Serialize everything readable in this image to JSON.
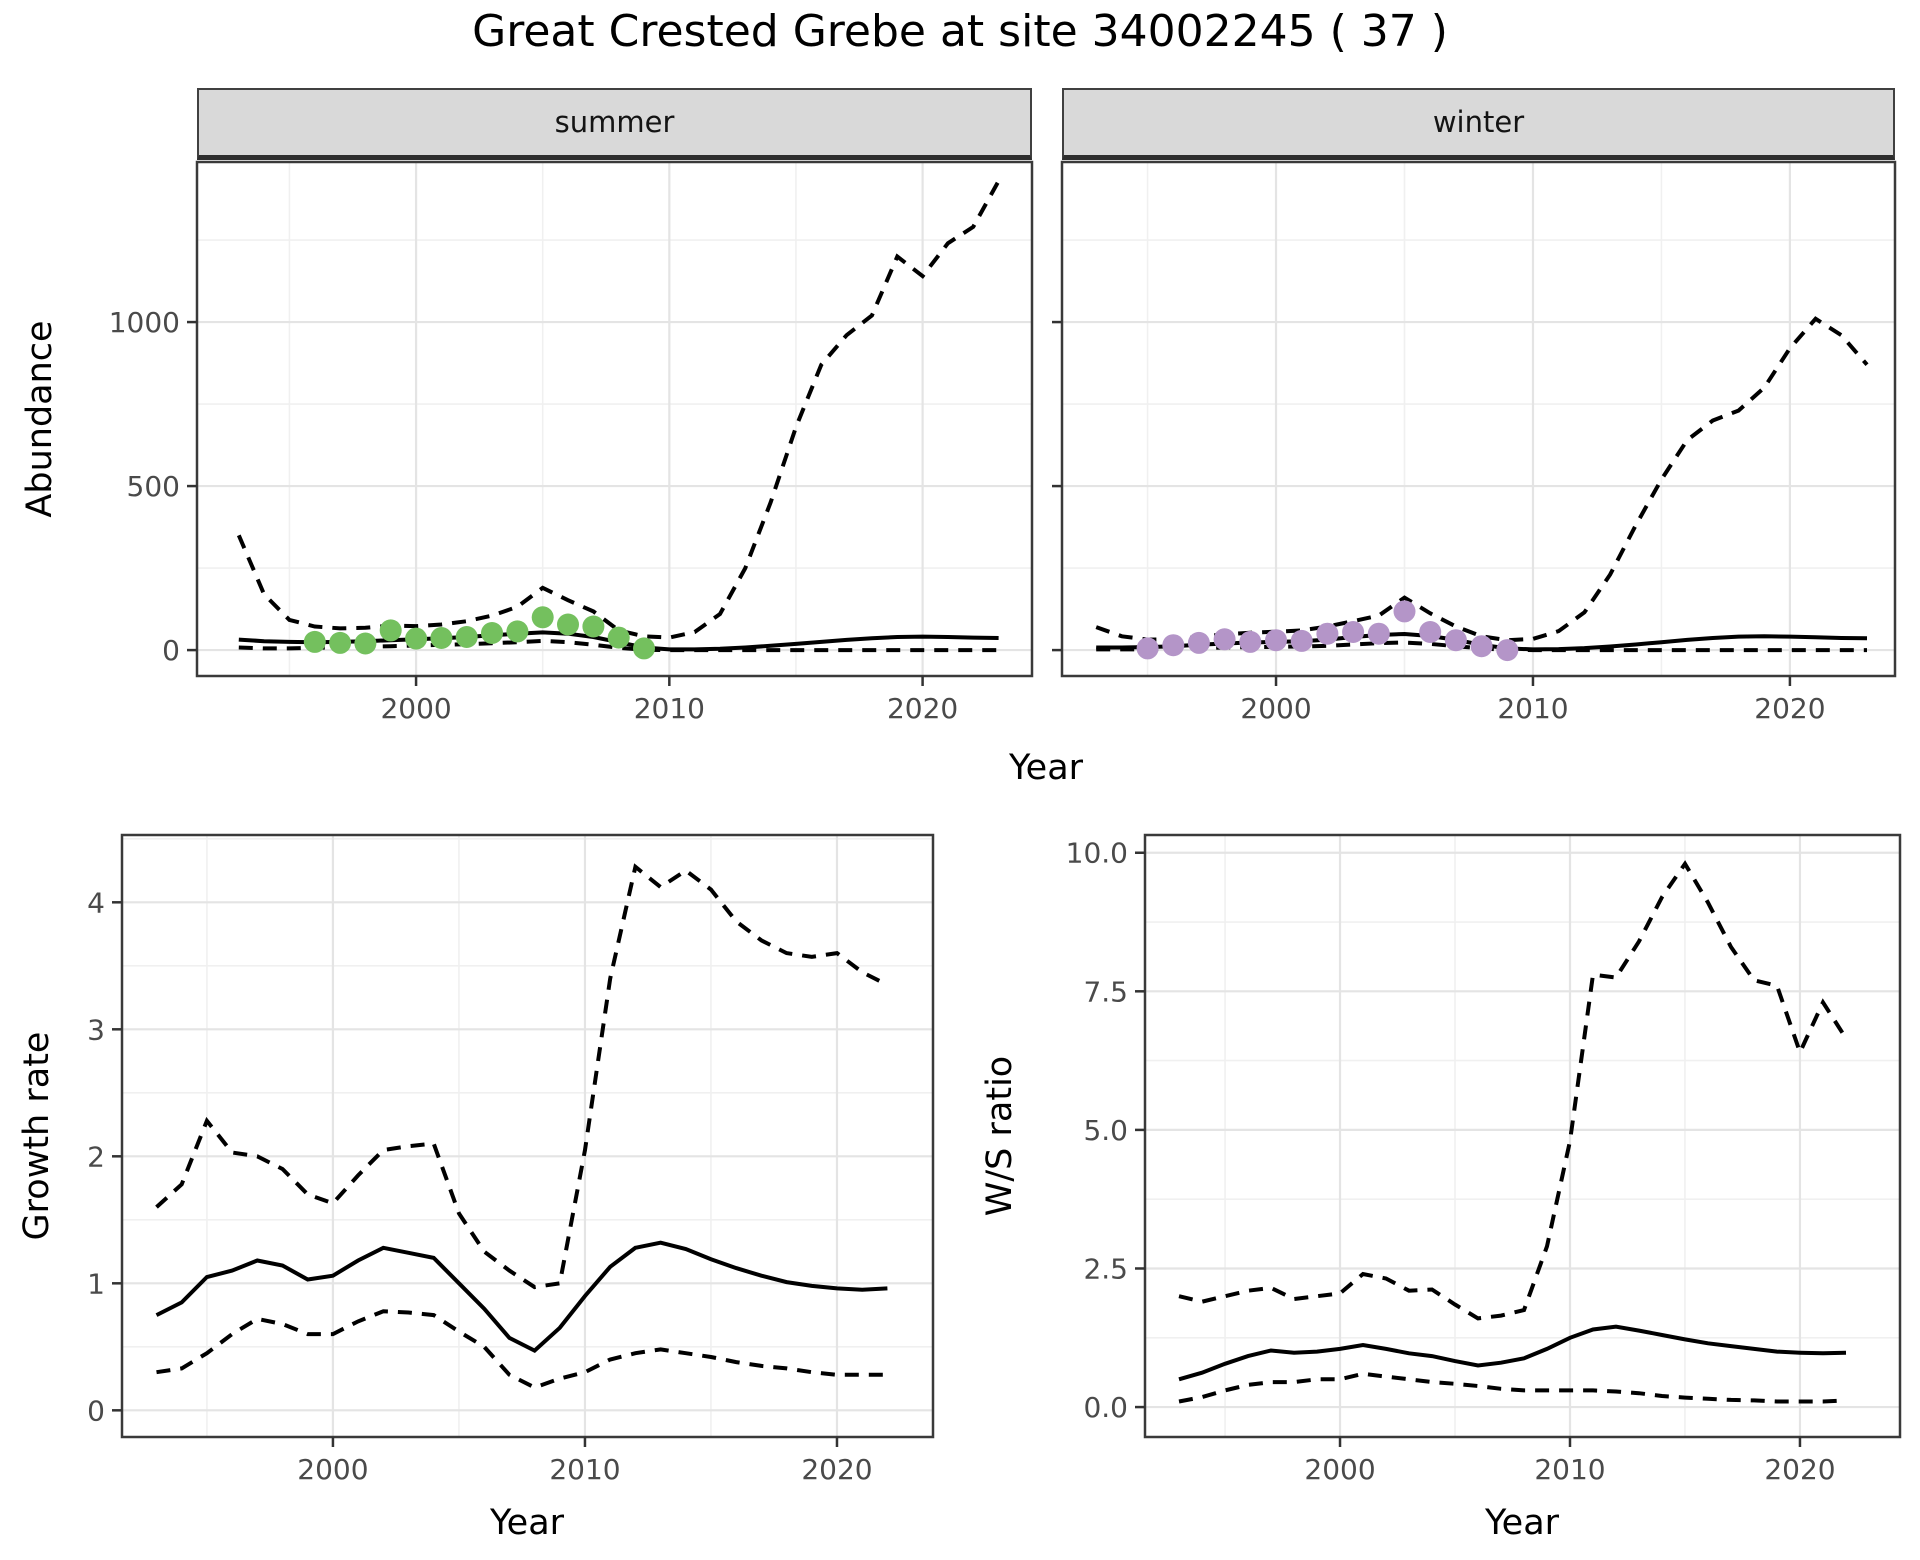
{
  "title": "Great Crested Grebe at site 34002245 ( 37 )",
  "facets": {
    "summer": "summer",
    "winter": "winter"
  },
  "axis_titles": {
    "abundance": "Abundance",
    "year_top": "Year",
    "growth": "Growth rate",
    "year_growth": "Year",
    "ws": "W/S ratio",
    "year_ws": "Year"
  },
  "colors": {
    "summer_points": "#74c05e",
    "winter_points": "#b495c8",
    "line": "#000000",
    "strip_bg": "#d9d9d9",
    "axis_text": "#4a4a4a"
  },
  "chart_data": [
    {
      "id": "abundance_summer",
      "type": "line",
      "facet": "summer",
      "ylabel": "Abundance",
      "xlabel": "Year",
      "xlim": [
        1991.35,
        2024.32
      ],
      "ylim": [
        -79,
        1488
      ],
      "xticks": [
        2000,
        2010,
        2020
      ],
      "xtick_labels": [
        "2000",
        "2010",
        "2020"
      ],
      "xminor": [
        1995,
        2005,
        2015
      ],
      "yticks": [
        0,
        500,
        1000
      ],
      "ytick_labels": [
        "0",
        "500",
        "1000"
      ],
      "yminor": [
        250,
        750,
        1250
      ],
      "show_ytick_labels": true,
      "x": [
        1993,
        1994,
        1995,
        1996,
        1997,
        1998,
        1999,
        2000,
        2001,
        2002,
        2003,
        2004,
        2005,
        2006,
        2007,
        2008,
        2009,
        2010,
        2011,
        2012,
        2013,
        2014,
        2015,
        2016,
        2017,
        2018,
        2019,
        2020,
        2021,
        2022,
        2023
      ],
      "series": [
        {
          "name": "upper-ci",
          "style": "dashed",
          "values": [
            350,
            170,
            92,
            72,
            66,
            68,
            75,
            73,
            78,
            88,
            105,
            132,
            190,
            152,
            118,
            60,
            42,
            38,
            55,
            110,
            250,
            450,
            680,
            870,
            960,
            1020,
            1200,
            1140,
            1240,
            1290,
            1430
          ]
        },
        {
          "name": "fit",
          "style": "solid",
          "values": [
            32,
            27,
            25,
            24,
            25,
            27,
            30,
            33,
            36,
            40,
            45,
            50,
            54,
            50,
            40,
            24,
            8,
            2,
            2,
            4,
            8,
            13,
            19,
            25,
            31,
            36,
            40,
            41,
            40,
            38,
            37
          ]
        },
        {
          "name": "lower-ci",
          "style": "dashed",
          "values": [
            8,
            5,
            5,
            7,
            8,
            10,
            12,
            14,
            16,
            18,
            21,
            24,
            28,
            24,
            16,
            7,
            1,
            0,
            0,
            0,
            0,
            0,
            0,
            0,
            0,
            0,
            0,
            0,
            0,
            0,
            0
          ]
        }
      ],
      "points": {
        "name": "observed-summer",
        "color_key": "summer_points",
        "x": [
          1996,
          1997,
          1998,
          1999,
          2000,
          2001,
          2002,
          2003,
          2004,
          2005,
          2006,
          2007,
          2008,
          2009
        ],
        "y": [
          25,
          22,
          20,
          60,
          35,
          37,
          40,
          52,
          57,
          100,
          78,
          72,
          38,
          5
        ]
      }
    },
    {
      "id": "abundance_winter",
      "type": "line",
      "facet": "winter",
      "ylabel": "Abundance",
      "xlabel": "Year",
      "xlim": [
        1991.67,
        2024.09
      ],
      "ylim": [
        -79,
        1488
      ],
      "xticks": [
        2000,
        2010,
        2020
      ],
      "xtick_labels": [
        "2000",
        "2010",
        "2020"
      ],
      "xminor": [
        1995,
        2005,
        2015
      ],
      "yticks": [
        0,
        500,
        1000
      ],
      "ytick_labels": [
        "0",
        "500",
        "1000"
      ],
      "yminor": [
        250,
        750,
        1250
      ],
      "show_ytick_labels": false,
      "x": [
        1993,
        1994,
        1995,
        1996,
        1997,
        1998,
        1999,
        2000,
        2001,
        2002,
        2003,
        2004,
        2005,
        2006,
        2007,
        2008,
        2009,
        2010,
        2011,
        2012,
        2013,
        2014,
        2015,
        2016,
        2017,
        2018,
        2019,
        2020,
        2021,
        2022,
        2023
      ],
      "series": [
        {
          "name": "upper-ci",
          "style": "dashed",
          "values": [
            70,
            42,
            32,
            33,
            40,
            48,
            53,
            56,
            60,
            72,
            88,
            105,
            160,
            112,
            72,
            42,
            30,
            34,
            58,
            115,
            230,
            380,
            520,
            640,
            700,
            730,
            800,
            920,
            1010,
            960,
            870
          ]
        },
        {
          "name": "fit",
          "style": "solid",
          "values": [
            8,
            8,
            9,
            12,
            16,
            20,
            23,
            25,
            27,
            32,
            40,
            46,
            49,
            43,
            31,
            16,
            5,
            2,
            3,
            6,
            11,
            17,
            24,
            31,
            37,
            41,
            42,
            41,
            39,
            37,
            36
          ]
        },
        {
          "name": "lower-ci",
          "style": "dashed",
          "values": [
            2,
            2,
            2,
            3,
            5,
            8,
            9,
            10,
            11,
            13,
            17,
            21,
            23,
            19,
            12,
            5,
            1,
            0,
            0,
            0,
            0,
            0,
            0,
            0,
            0,
            0,
            0,
            0,
            0,
            0,
            0
          ]
        }
      ],
      "points": {
        "name": "observed-winter",
        "color_key": "winter_points",
        "x": [
          1995,
          1996,
          1997,
          1998,
          1999,
          2000,
          2001,
          2002,
          2003,
          2004,
          2005,
          2006,
          2007,
          2008,
          2009
        ],
        "y": [
          5,
          15,
          22,
          33,
          25,
          30,
          28,
          50,
          55,
          50,
          118,
          55,
          30,
          12,
          0
        ]
      }
    },
    {
      "id": "growth_rate",
      "type": "line",
      "facet": null,
      "ylabel": "Growth rate",
      "xlabel": "Year",
      "xlim": [
        1991.63,
        2023.81
      ],
      "ylim": [
        -0.21,
        4.53
      ],
      "xticks": [
        2000,
        2010,
        2020
      ],
      "xtick_labels": [
        "2000",
        "2010",
        "2020"
      ],
      "xminor": [
        1995,
        2005,
        2015
      ],
      "yticks": [
        0,
        1,
        2,
        3,
        4
      ],
      "ytick_labels": [
        "0",
        "1",
        "2",
        "3",
        "4"
      ],
      "yminor": [
        0.5,
        1.5,
        2.5,
        3.5,
        4.5
      ],
      "show_ytick_labels": true,
      "x": [
        1993,
        1994,
        1995,
        1996,
        1997,
        1998,
        1999,
        2000,
        2001,
        2002,
        2003,
        2004,
        2005,
        2006,
        2007,
        2008,
        2009,
        2010,
        2011,
        2012,
        2013,
        2014,
        2015,
        2016,
        2017,
        2018,
        2019,
        2020,
        2021,
        2022
      ],
      "series": [
        {
          "name": "upper-ci",
          "style": "dashed",
          "values": [
            1.6,
            1.78,
            2.28,
            2.03,
            2.0,
            1.9,
            1.7,
            1.63,
            1.85,
            2.05,
            2.08,
            2.1,
            1.55,
            1.25,
            1.1,
            0.97,
            1.0,
            2.05,
            3.4,
            4.28,
            4.12,
            4.25,
            4.1,
            3.85,
            3.7,
            3.6,
            3.57,
            3.6,
            3.45,
            3.35
          ]
        },
        {
          "name": "fit",
          "style": "solid",
          "values": [
            0.75,
            0.85,
            1.05,
            1.1,
            1.18,
            1.14,
            1.03,
            1.06,
            1.18,
            1.28,
            1.24,
            1.2,
            1.0,
            0.8,
            0.57,
            0.47,
            0.65,
            0.9,
            1.13,
            1.28,
            1.32,
            1.27,
            1.19,
            1.12,
            1.06,
            1.01,
            0.98,
            0.96,
            0.95,
            0.96
          ]
        },
        {
          "name": "lower-ci",
          "style": "dashed",
          "values": [
            0.3,
            0.33,
            0.45,
            0.6,
            0.72,
            0.68,
            0.6,
            0.6,
            0.7,
            0.78,
            0.77,
            0.75,
            0.62,
            0.5,
            0.28,
            0.18,
            0.25,
            0.3,
            0.4,
            0.45,
            0.48,
            0.45,
            0.42,
            0.38,
            0.35,
            0.33,
            0.3,
            0.28,
            0.28,
            0.28
          ]
        }
      ]
    },
    {
      "id": "ws_ratio",
      "type": "line",
      "facet": null,
      "ylabel": "W/S ratio",
      "xlabel": "Year",
      "xlim": [
        1991.52,
        2024.35
      ],
      "ylim": [
        -0.54,
        10.32
      ],
      "xticks": [
        2000,
        2010,
        2020
      ],
      "xtick_labels": [
        "2000",
        "2010",
        "2020"
      ],
      "xminor": [
        1995,
        2005,
        2015
      ],
      "yticks": [
        0,
        2.5,
        5,
        7.5,
        10
      ],
      "ytick_labels": [
        "0.0",
        "2.5",
        "5.0",
        "7.5",
        "10.0"
      ],
      "yminor": [
        1.25,
        3.75,
        6.25,
        8.75
      ],
      "show_ytick_labels": true,
      "x": [
        1993,
        1994,
        1995,
        1996,
        1997,
        1998,
        1999,
        2000,
        2001,
        2002,
        2003,
        2004,
        2005,
        2006,
        2007,
        2008,
        2009,
        2010,
        2011,
        2012,
        2013,
        2014,
        2015,
        2016,
        2017,
        2018,
        2019,
        2020,
        2021,
        2022
      ],
      "series": [
        {
          "name": "upper-ci",
          "style": "dashed",
          "values": [
            2.0,
            1.9,
            2.0,
            2.1,
            2.15,
            1.95,
            2.0,
            2.05,
            2.4,
            2.32,
            2.1,
            2.12,
            1.85,
            1.6,
            1.65,
            1.75,
            2.9,
            4.8,
            7.8,
            7.75,
            8.4,
            9.2,
            9.8,
            9.1,
            8.3,
            7.7,
            7.6,
            6.4,
            7.3,
            6.65
          ]
        },
        {
          "name": "fit",
          "style": "solid",
          "values": [
            0.5,
            0.62,
            0.78,
            0.92,
            1.02,
            0.98,
            1.0,
            1.05,
            1.12,
            1.05,
            0.97,
            0.92,
            0.83,
            0.75,
            0.8,
            0.88,
            1.05,
            1.25,
            1.4,
            1.45,
            1.38,
            1.3,
            1.22,
            1.15,
            1.1,
            1.05,
            1.0,
            0.98,
            0.97,
            0.98
          ]
        },
        {
          "name": "lower-ci",
          "style": "dashed",
          "values": [
            0.1,
            0.18,
            0.3,
            0.4,
            0.45,
            0.45,
            0.5,
            0.5,
            0.6,
            0.55,
            0.5,
            0.45,
            0.42,
            0.38,
            0.33,
            0.3,
            0.3,
            0.3,
            0.3,
            0.28,
            0.25,
            0.2,
            0.17,
            0.15,
            0.13,
            0.12,
            0.1,
            0.1,
            0.1,
            0.12
          ]
        }
      ]
    }
  ]
}
